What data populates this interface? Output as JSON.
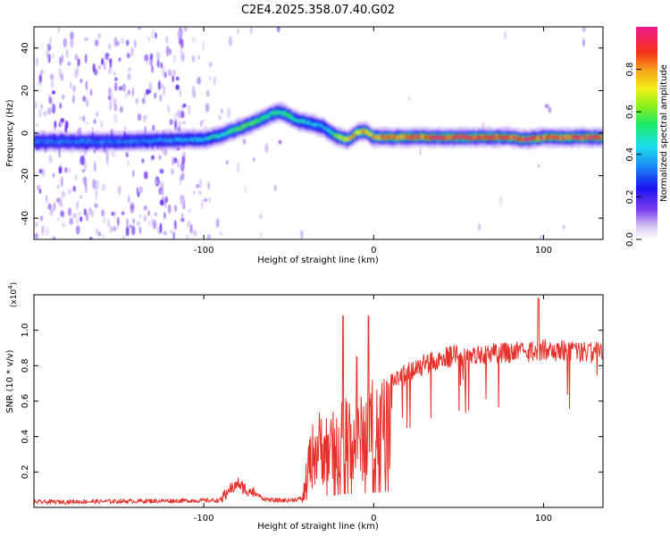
{
  "title": "C2E4.2025.358.07.40.G02",
  "colors": {
    "snr_line": "#e8302a",
    "axis": "#000000",
    "background": "#ffffff"
  },
  "chart_data": [
    {
      "type": "heatmap",
      "name": "spectrogram",
      "xlabel": "Height of straight line (km)",
      "ylabel": "Frequency (Hz)",
      "xlim": [
        -200,
        135
      ],
      "ylim": [
        -50,
        50
      ],
      "x_ticks": [
        -100,
        0,
        100
      ],
      "x_tick_labels": [
        "-100",
        "0",
        "100"
      ],
      "y_ticks": [
        -40,
        -20,
        0,
        20,
        40
      ],
      "y_tick_labels": [
        "-40",
        "-20",
        "0",
        "20",
        "40"
      ],
      "colorbar": {
        "label": "Normalized spectral amplitude",
        "range": [
          0,
          1
        ],
        "ticks": [
          0.0,
          0.2,
          0.4,
          0.6,
          0.8
        ],
        "tick_labels": [
          "0.0",
          "0.2",
          "0.4",
          "0.6",
          "0.8"
        ]
      },
      "ridge": {
        "x": [
          -200,
          -150,
          -110,
          -100,
          -90,
          -80,
          -70,
          -60,
          -55,
          -50,
          -45,
          -40,
          -35,
          -30,
          -25,
          -20,
          -15,
          -10,
          -5,
          0,
          10,
          20,
          40,
          60,
          80,
          90,
          100,
          120,
          135
        ],
        "freq": [
          -4,
          -4,
          -3,
          -3,
          -1,
          2,
          5,
          9,
          10,
          8,
          6,
          5,
          4,
          3,
          0,
          -2,
          -3,
          0,
          1,
          -2,
          -2,
          -2,
          -2,
          -2,
          -2,
          -3,
          -2,
          -2,
          -2
        ],
        "amplitude": [
          0.35,
          0.35,
          0.4,
          0.45,
          0.5,
          0.6,
          0.6,
          0.55,
          0.55,
          0.6,
          0.5,
          0.45,
          0.45,
          0.4,
          0.5,
          0.7,
          0.75,
          0.8,
          0.85,
          0.8,
          0.9,
          0.9,
          0.95,
          0.95,
          0.9,
          1.0,
          0.9,
          0.95,
          0.95
        ]
      }
    },
    {
      "type": "line",
      "name": "snr",
      "xlabel": "Height of straight line (km)",
      "ylabel": "SNR (10 * v/v)",
      "y_multiplier_label": "(x10",
      "y_multiplier_exp": "4",
      "xlim": [
        -200,
        135
      ],
      "ylim": [
        0,
        1.2
      ],
      "x_ticks": [
        -100,
        0,
        100
      ],
      "x_tick_labels": [
        "-100",
        "0",
        "100"
      ],
      "y_ticks": [
        0.2,
        0.4,
        0.6,
        0.8,
        1.0
      ],
      "y_tick_labels": [
        "0.2",
        "0.4",
        "0.6",
        "0.8",
        "1.0"
      ],
      "envelope": {
        "x": [
          -200,
          -90,
          -85,
          -80,
          -75,
          -70,
          -65,
          -60,
          -50,
          -42,
          -38,
          -35,
          -30,
          -25,
          -20,
          -15,
          -10,
          -5,
          0,
          5,
          10,
          20,
          30,
          40,
          50,
          60,
          80,
          100,
          120,
          135
        ],
        "y": [
          0.03,
          0.04,
          0.1,
          0.13,
          0.1,
          0.08,
          0.05,
          0.04,
          0.04,
          0.05,
          0.35,
          0.45,
          0.5,
          0.45,
          0.55,
          0.6,
          0.5,
          0.6,
          0.65,
          0.68,
          0.75,
          0.82,
          0.87,
          0.9,
          0.92,
          0.93,
          0.93,
          0.95,
          0.94,
          0.93
        ]
      },
      "spikes": [
        {
          "x": -18,
          "y": 1.08
        },
        {
          "x": -10,
          "y": 0.85
        },
        {
          "x": -3,
          "y": 1.08
        },
        {
          "x": 97,
          "y": 1.18
        }
      ]
    }
  ]
}
